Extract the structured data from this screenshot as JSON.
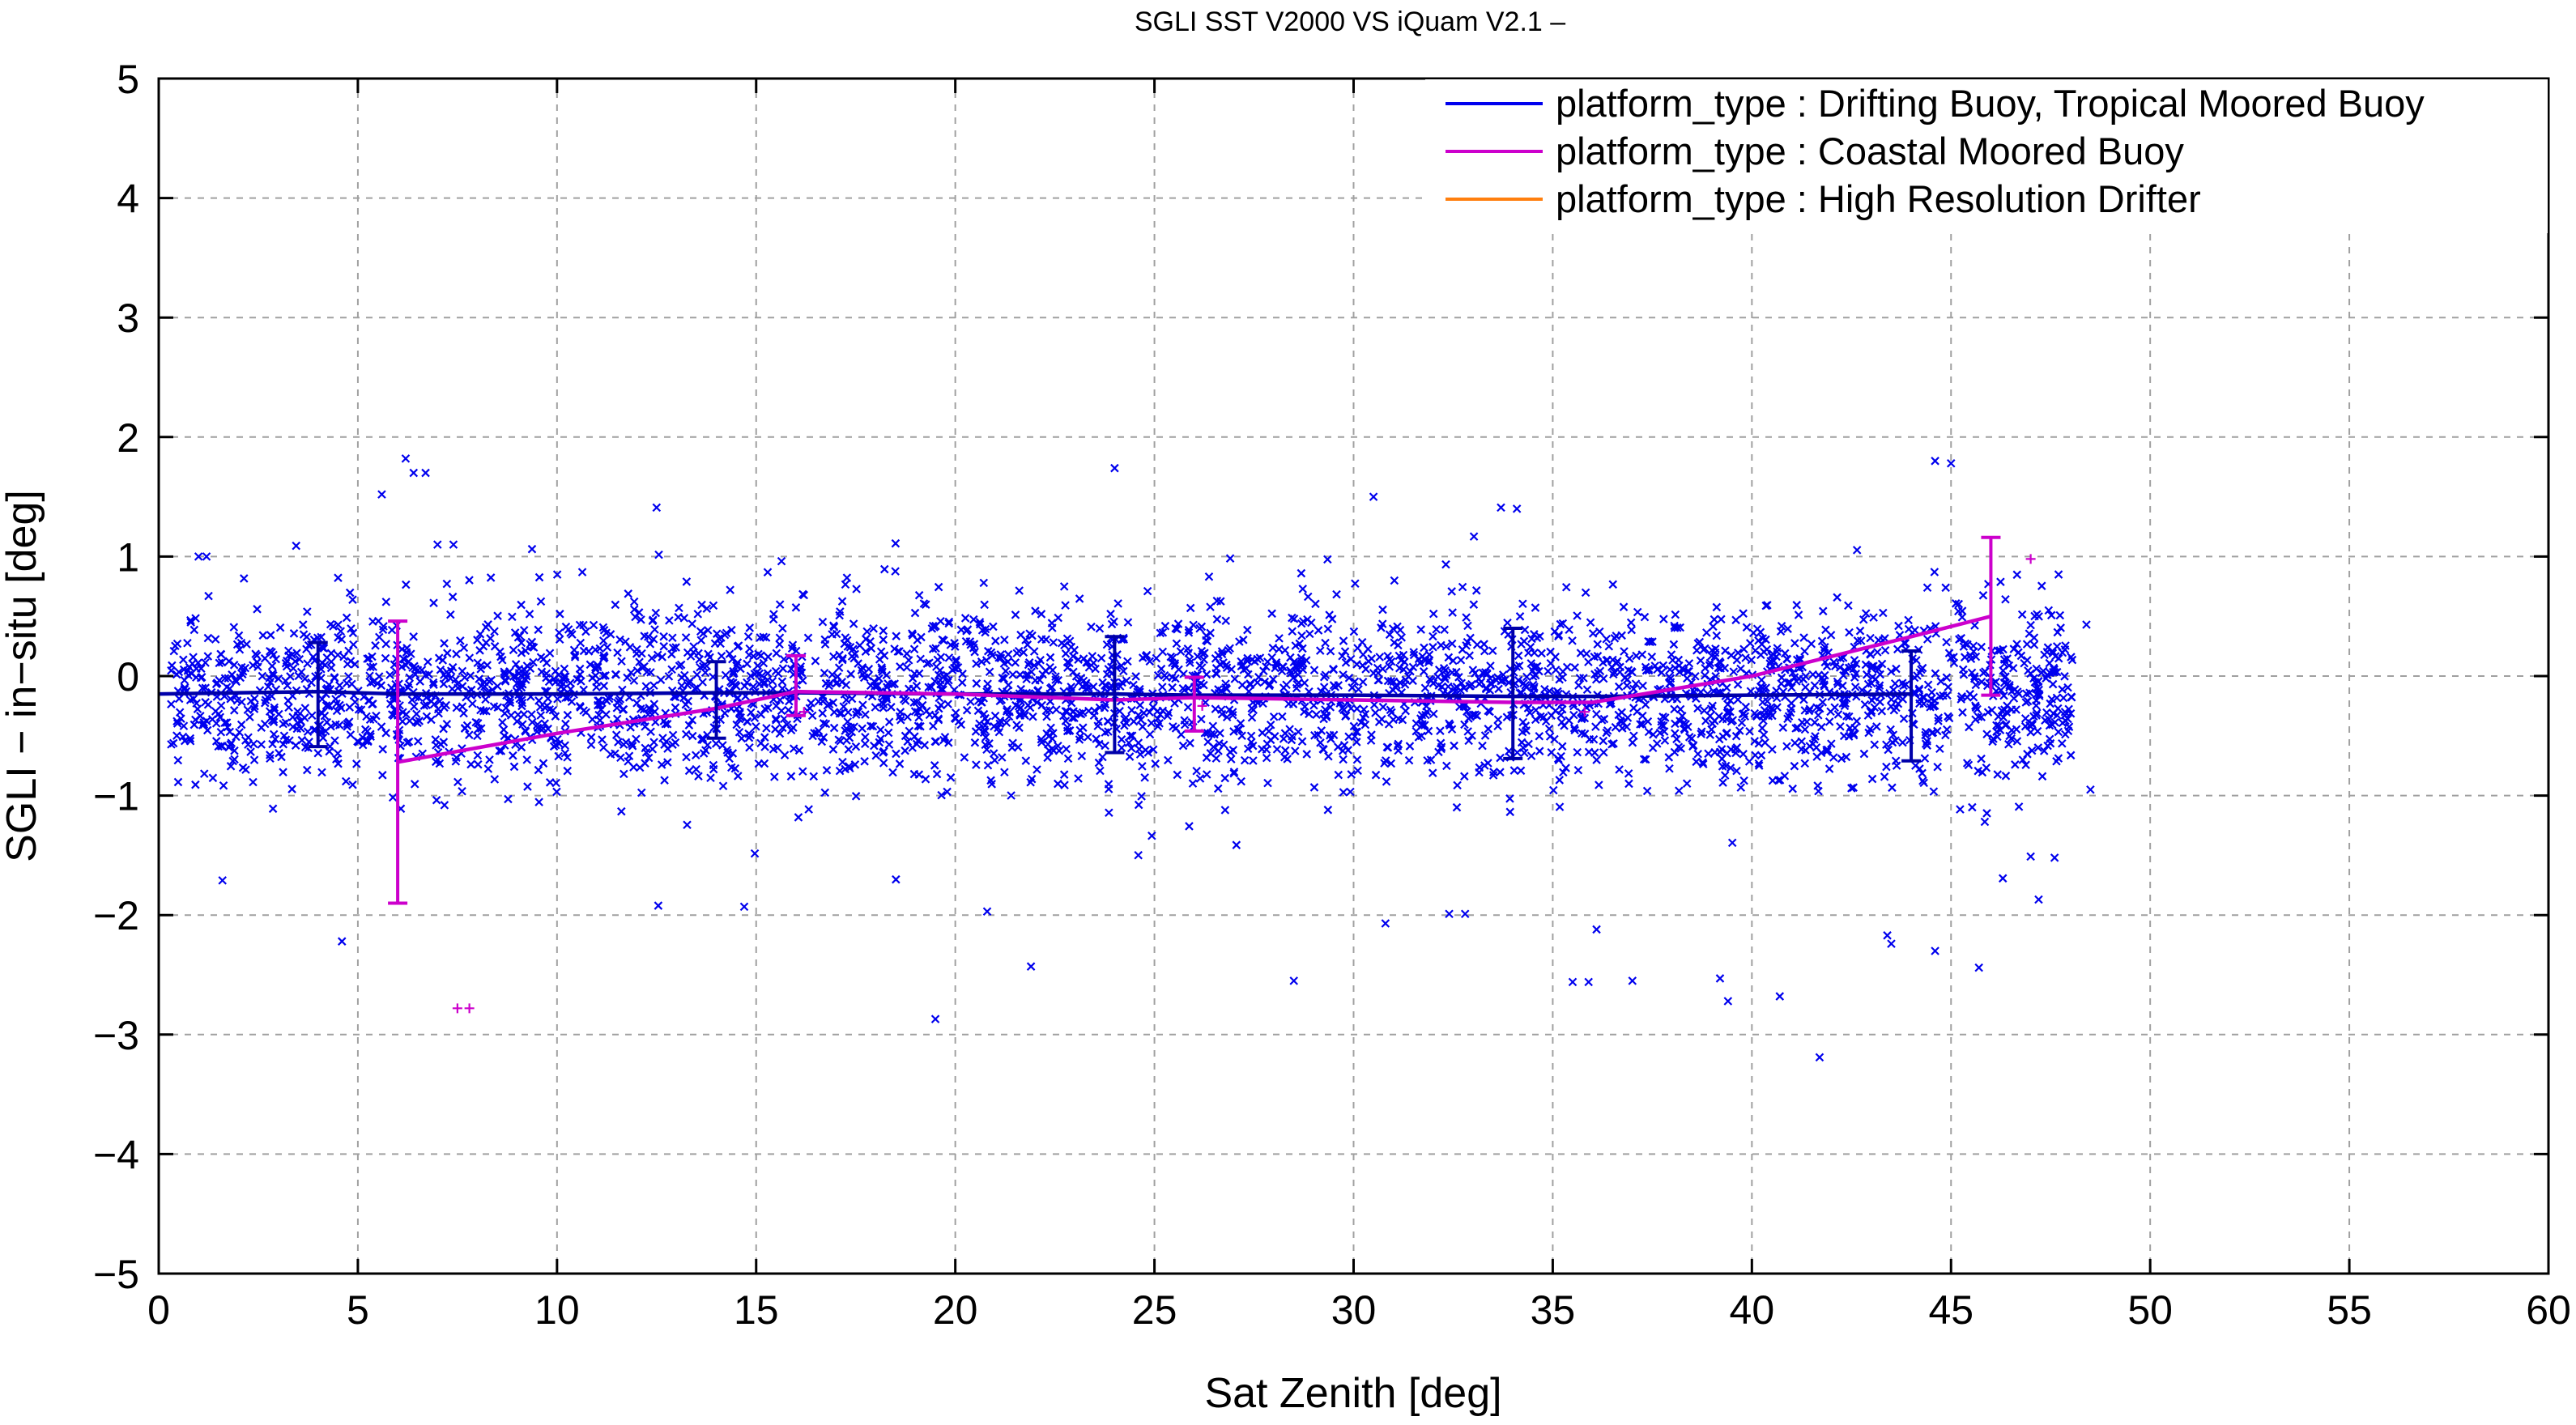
{
  "chart_data": {
    "type": "scatter",
    "title": "SGLI SST V2000 VS iQuam V2.1  –",
    "xlabel": "Sat Zenith [deg]",
    "ylabel": "SGLI − in−situ [deg]",
    "xlim": [
      0,
      60
    ],
    "ylim": [
      -5,
      5
    ],
    "xticks": [
      0,
      5,
      10,
      15,
      20,
      25,
      30,
      35,
      40,
      45,
      50,
      55,
      60
    ],
    "yticks": [
      -5,
      -4,
      -3,
      -2,
      -1,
      0,
      1,
      2,
      3,
      4,
      5
    ],
    "xtick_labels": [
      "0",
      "5",
      "10",
      "15",
      "20",
      "25",
      "30",
      "35",
      "40",
      "45",
      "50",
      "55",
      "60"
    ],
    "ytick_labels": [
      "−5",
      "−4",
      "−3",
      "−2",
      "−1",
      "0",
      "1",
      "2",
      "3",
      "4",
      "5"
    ],
    "grid": true,
    "legend_position": "top-right",
    "series": [
      {
        "name": "platform_type : Drifting Buoy, Tropical Moored Buoy",
        "color": "#0000ee",
        "marker": "x",
        "mean_line": {
          "x": [
            0,
            4,
            6,
            10,
            14,
            16,
            20,
            24,
            26,
            30,
            34,
            36,
            40,
            44
          ],
          "y": [
            -0.15,
            -0.13,
            -0.15,
            -0.15,
            -0.14,
            -0.14,
            -0.15,
            -0.15,
            -0.16,
            -0.16,
            -0.17,
            -0.17,
            -0.16,
            -0.15
          ]
        },
        "error_bars": [
          {
            "x": 4,
            "low": -0.59,
            "high": 0.28
          },
          {
            "x": 14,
            "low": -0.52,
            "high": 0.12
          },
          {
            "x": 24,
            "low": -0.64,
            "high": 0.33
          },
          {
            "x": 34,
            "low": -0.69,
            "high": 0.4
          },
          {
            "x": 44,
            "low": -0.71,
            "high": 0.21
          }
        ],
        "notable_points": [
          {
            "x": 6.2,
            "y": 1.82
          },
          {
            "x": 6.4,
            "y": 1.7
          },
          {
            "x": 6.7,
            "y": 1.7
          },
          {
            "x": 5.6,
            "y": 1.52
          },
          {
            "x": 24.0,
            "y": 1.74
          },
          {
            "x": 44.6,
            "y": 1.8
          },
          {
            "x": 45.0,
            "y": 1.78
          },
          {
            "x": 30.5,
            "y": 1.5
          },
          {
            "x": 33.7,
            "y": 1.41
          },
          {
            "x": 34.1,
            "y": 1.4
          },
          {
            "x": 12.5,
            "y": 1.41
          },
          {
            "x": 7.0,
            "y": 1.1
          },
          {
            "x": 7.4,
            "y": 1.1
          },
          {
            "x": 18.5,
            "y": 1.11
          },
          {
            "x": 1.0,
            "y": 1.0
          },
          {
            "x": 1.2,
            "y": 1.0
          },
          {
            "x": 4.6,
            "y": -2.22
          },
          {
            "x": 19.5,
            "y": -2.87
          },
          {
            "x": 21.9,
            "y": -2.43
          },
          {
            "x": 28.5,
            "y": -2.55
          },
          {
            "x": 35.5,
            "y": -2.56
          },
          {
            "x": 35.9,
            "y": -2.56
          },
          {
            "x": 37.0,
            "y": -2.55
          },
          {
            "x": 39.2,
            "y": -2.53
          },
          {
            "x": 39.4,
            "y": -2.72
          },
          {
            "x": 40.7,
            "y": -2.68
          },
          {
            "x": 41.7,
            "y": -3.19
          },
          {
            "x": 43.4,
            "y": -2.17
          },
          {
            "x": 43.5,
            "y": -2.24
          },
          {
            "x": 44.6,
            "y": -2.3
          },
          {
            "x": 45.7,
            "y": -2.44
          },
          {
            "x": 1.6,
            "y": -1.71
          },
          {
            "x": 14.7,
            "y": -1.93
          },
          {
            "x": 20.8,
            "y": -1.97
          },
          {
            "x": 30.8,
            "y": -2.07
          },
          {
            "x": 32.4,
            "y": -1.99
          },
          {
            "x": 32.8,
            "y": -1.99
          },
          {
            "x": 36.1,
            "y": -2.12
          },
          {
            "x": 47.2,
            "y": -1.87
          },
          {
            "x": 47.0,
            "y": -1.51
          },
          {
            "x": 47.6,
            "y": -1.52
          },
          {
            "x": 48.5,
            "y": -0.95
          },
          {
            "x": 48.4,
            "y": 0.43
          },
          {
            "x": 47.7,
            "y": 0.85
          }
        ]
      },
      {
        "name": "platform_type : Coastal Moored Buoy",
        "color": "#cc00cc",
        "marker": "+",
        "mean_line": {
          "x": [
            6,
            10,
            14,
            16,
            20,
            24,
            26,
            30,
            34,
            36,
            40,
            44,
            46
          ],
          "y": [
            -0.72,
            -0.48,
            -0.27,
            -0.13,
            -0.15,
            -0.2,
            -0.18,
            -0.2,
            -0.22,
            -0.22,
            0.0,
            0.33,
            0.5
          ]
        },
        "error_bars": [
          {
            "x": 6,
            "low": -1.9,
            "high": 0.46
          },
          {
            "x": 16,
            "low": -0.33,
            "high": 0.17
          },
          {
            "x": 26,
            "low": -0.46,
            "high": -0.01
          },
          {
            "x": 46,
            "low": -0.16,
            "high": 1.16
          }
        ],
        "points": [
          {
            "x": 7.5,
            "y": -2.78
          },
          {
            "x": 7.8,
            "y": -2.78
          },
          {
            "x": 47.0,
            "y": 0.98
          },
          {
            "x": 16.2,
            "y": -0.3
          },
          {
            "x": 26.2,
            "y": -0.25
          },
          {
            "x": 35.8,
            "y": -0.3
          }
        ]
      },
      {
        "name": "platform_type : High Resolution Drifter",
        "color": "#ff7f0e",
        "marker": "x",
        "points": []
      }
    ]
  }
}
